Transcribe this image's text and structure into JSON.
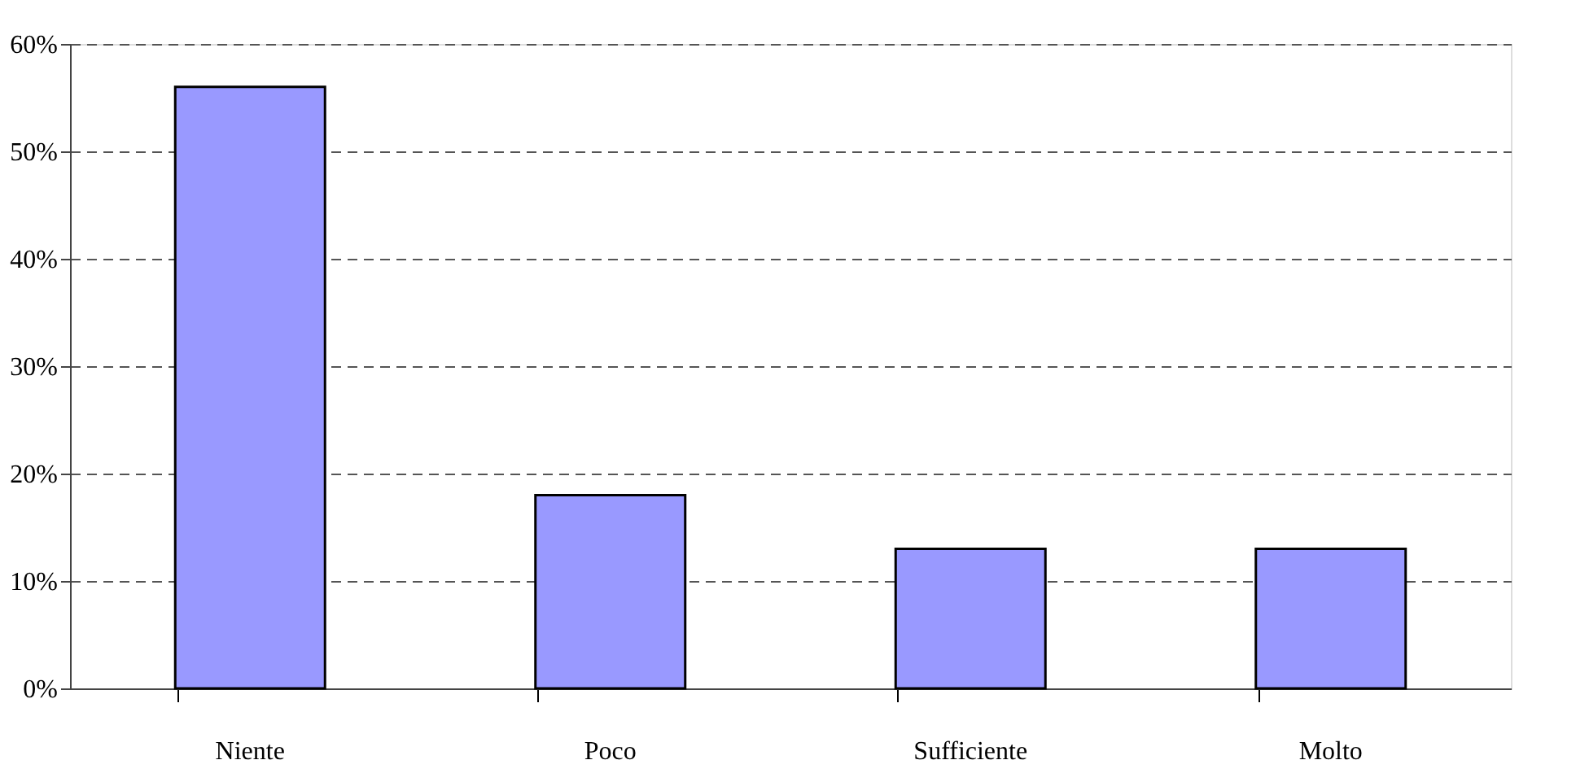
{
  "chart_data": {
    "type": "bar",
    "categories": [
      "Niente",
      "Poco",
      "Sufficiente",
      "Molto"
    ],
    "values": [
      56,
      18,
      13,
      13
    ],
    "color": "#9999ff",
    "ylim": [
      0,
      60
    ],
    "yticks": [
      {
        "value": 0,
        "label": "0%"
      },
      {
        "value": 10,
        "label": "10%"
      },
      {
        "value": 20,
        "label": "20%"
      },
      {
        "value": 30,
        "label": "30%"
      },
      {
        "value": 40,
        "label": "40%"
      },
      {
        "value": 50,
        "label": "50%"
      },
      {
        "value": 60,
        "label": "60%"
      }
    ],
    "grid": "y"
  }
}
